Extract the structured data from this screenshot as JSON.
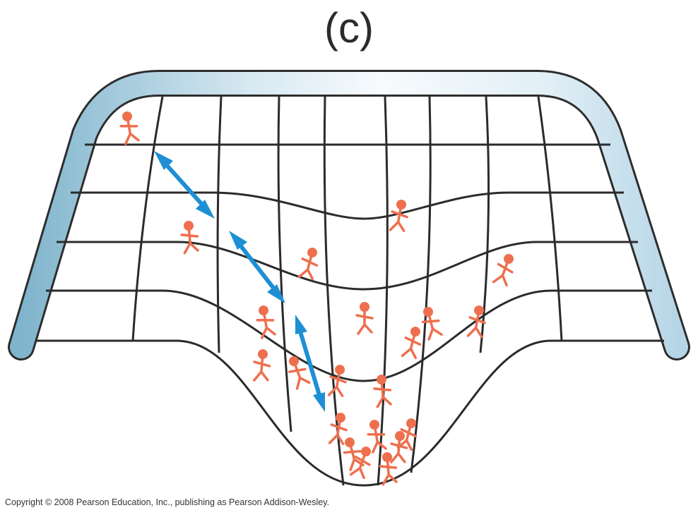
{
  "figure": {
    "panel_label": "(c)",
    "colors": {
      "frame_dark": "#7fb4cc",
      "frame_light": "#f3f9fc",
      "outline": "#2d2d2d",
      "grid": "#2b2b2b",
      "arrow": "#1e8fd4",
      "people": "#ee6f4e"
    },
    "icons": {
      "arrow": "double-headed-arrow-icon",
      "person": "stick-figure-icon"
    }
  },
  "copyright": "Copyright © 2008 Pearson Education, Inc., publishing as Pearson Addison-Wesley."
}
